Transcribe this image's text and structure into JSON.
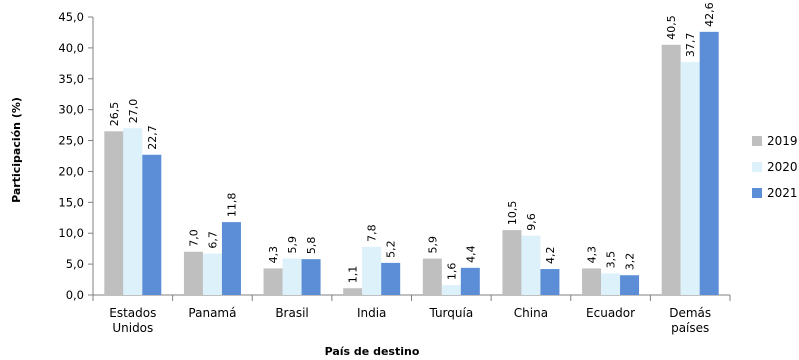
{
  "chart_data": {
    "type": "bar",
    "xlabel": "País de destino",
    "ylabel": "Participación (%)",
    "ylim": [
      0,
      45
    ],
    "yticks": [
      "0,0",
      "5,0",
      "10,0",
      "15,0",
      "20,0",
      "25,0",
      "30,0",
      "35,0",
      "40,0",
      "45,0"
    ],
    "ytick_values": [
      0,
      5,
      10,
      15,
      20,
      25,
      30,
      35,
      40,
      45
    ],
    "categories": [
      [
        "Estados",
        "Unidos"
      ],
      [
        "Panamá"
      ],
      [
        "Brasil"
      ],
      [
        "India"
      ],
      [
        "Turquía"
      ],
      [
        "China"
      ],
      [
        "Ecuador"
      ],
      [
        "Demás",
        "países"
      ]
    ],
    "series": [
      {
        "name": "2019",
        "color": "#bfbfbf",
        "values": [
          26.5,
          7.0,
          4.3,
          1.1,
          5.9,
          10.5,
          4.3,
          40.5
        ],
        "labels": [
          "26,5",
          "7,0",
          "4,3",
          "1,1",
          "5,9",
          "10,5",
          "4,3",
          "40,5"
        ]
      },
      {
        "name": "2020",
        "color": "#dcf1fa",
        "values": [
          27.0,
          6.7,
          5.9,
          7.8,
          1.6,
          9.6,
          3.5,
          37.7
        ],
        "labels": [
          "27,0",
          "6,7",
          "5,9",
          "7,8",
          "1,6",
          "9,6",
          "3,5",
          "37,7"
        ]
      },
      {
        "name": "2021",
        "color": "#5b8ed6",
        "values": [
          22.7,
          11.8,
          5.8,
          5.2,
          4.4,
          4.2,
          3.2,
          42.6
        ],
        "labels": [
          "22,7",
          "11,8",
          "5,8",
          "5,2",
          "4,4",
          "4,2",
          "3,2",
          "42,6"
        ]
      }
    ],
    "grid": false,
    "legend_position": "right"
  }
}
